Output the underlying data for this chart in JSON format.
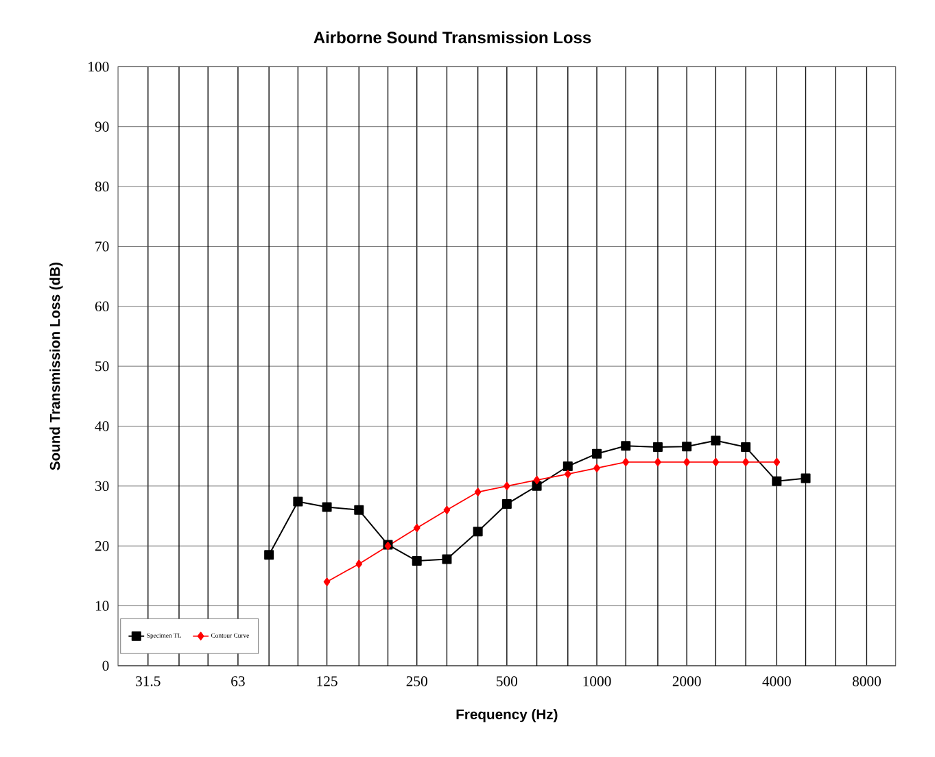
{
  "chart_data": {
    "type": "line",
    "title": "Airborne Sound Transmission Loss",
    "xlabel": "Frequency (Hz)",
    "ylabel": "Sound Transmission Loss (dB)",
    "log": "x",
    "grid": true,
    "legend": "bottom left",
    "xlim": [
      25,
      10000
    ],
    "xticks": [
      31.5,
      {
        "value": 40,
        "label": null
      },
      {
        "value": 50,
        "label": null
      },
      63,
      {
        "value": 80,
        "label": null
      },
      {
        "value": 100,
        "label": null
      },
      125,
      {
        "value": 160,
        "label": null
      },
      {
        "value": 200,
        "label": null
      },
      250,
      {
        "value": 315,
        "label": null
      },
      {
        "value": 400,
        "label": null
      },
      500,
      {
        "value": 630,
        "label": null
      },
      {
        "value": 800,
        "label": null
      },
      1000,
      {
        "value": 1250,
        "label": null
      },
      {
        "value": 1600,
        "label": null
      },
      2000,
      {
        "value": 2500,
        "label": null
      },
      {
        "value": 3150,
        "label": null
      },
      4000,
      {
        "value": 5000,
        "label": null
      },
      {
        "value": 6300,
        "label": null
      },
      8000
    ],
    "ylim": [
      0,
      100
    ],
    "yticks": [
      0,
      10,
      20,
      30,
      40,
      50,
      60,
      70,
      80,
      90,
      100
    ],
    "x": [
      80,
      100,
      125,
      160,
      200,
      250,
      315,
      400,
      500,
      630,
      800,
      1000,
      1250,
      1600,
      2000,
      2500,
      3150,
      4000,
      5000
    ],
    "series": [
      {
        "name": "Specimen TL",
        "color": "#000000",
        "marker": "square",
        "values": [
          18.5,
          27.4,
          26.5,
          26,
          20.2,
          17.5,
          17.8,
          22.4,
          27,
          30,
          33.3,
          35.4,
          36.7,
          36.5,
          36.6,
          37.6,
          36.5,
          30.8,
          31.3
        ]
      },
      {
        "name": "Contour Curve",
        "color": "#ff0000",
        "marker": "diamond",
        "values": [
          null,
          null,
          14,
          17,
          20,
          23,
          26,
          29,
          30,
          31,
          32,
          33,
          34,
          34,
          34,
          34,
          34,
          34,
          null
        ]
      }
    ]
  }
}
